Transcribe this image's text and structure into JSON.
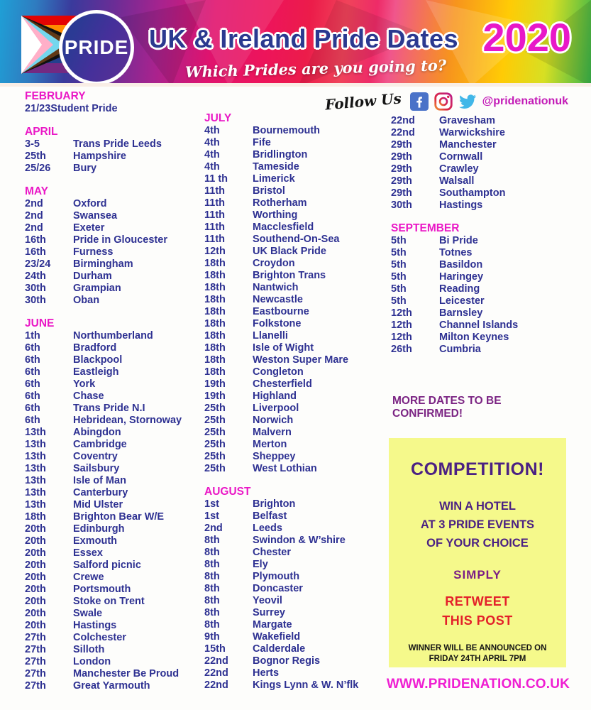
{
  "header": {
    "logo_text": "PRIDE",
    "title": "UK & Ireland Pride Dates",
    "year": "2020",
    "subtitle": "Which Prides are you going to?"
  },
  "social": {
    "follow_label": "Follow Us",
    "handle": "@pridenationuk",
    "icons": [
      "facebook-icon",
      "instagram-icon",
      "twitter-icon"
    ]
  },
  "columns": [
    {
      "sections": [
        {
          "month": "FEBRUARY",
          "tight": true,
          "entries": [
            {
              "d": "21/23",
              "n": "Student Pride"
            }
          ]
        },
        {
          "month": "APRIL",
          "entries": [
            {
              "d": "3-5",
              "n": "Trans Pride Leeds"
            },
            {
              "d": "25th",
              "n": "Hampshire"
            },
            {
              "d": "25/26",
              "n": "Bury"
            }
          ]
        },
        {
          "month": "MAY",
          "entries": [
            {
              "d": "2nd",
              "n": "Oxford"
            },
            {
              "d": "2nd",
              "n": "Swansea"
            },
            {
              "d": "2nd",
              "n": "Exeter"
            },
            {
              "d": "16th",
              "n": "Pride in Gloucester"
            },
            {
              "d": "16th",
              "n": "Furness"
            },
            {
              "d": "23/24",
              "n": "Birmingham"
            },
            {
              "d": "24th",
              "n": "Durham"
            },
            {
              "d": "30th",
              "n": "Grampian"
            },
            {
              "d": "30th",
              "n": "Oban"
            }
          ]
        },
        {
          "month": "JUNE",
          "entries": [
            {
              "d": "1th",
              "n": "Northumberland"
            },
            {
              "d": "6th",
              "n": "Bradford"
            },
            {
              "d": "6th",
              "n": "Blackpool"
            },
            {
              "d": "6th",
              "n": "Eastleigh"
            },
            {
              "d": "6th",
              "n": "York"
            },
            {
              "d": "6th",
              "n": "Chase"
            },
            {
              "d": "6th",
              "n": "Trans Pride N.I"
            },
            {
              "d": "6th",
              "n": "Hebridean, Stornoway"
            },
            {
              "d": "13th",
              "n": "Abingdon"
            },
            {
              "d": "13th",
              "n": "Cambridge"
            },
            {
              "d": "13th",
              "n": "Coventry"
            },
            {
              "d": "13th",
              "n": "Sailsbury"
            },
            {
              "d": "13th",
              "n": "Isle of Man"
            },
            {
              "d": "13th",
              "n": "Canterbury"
            },
            {
              "d": "13th",
              "n": "Mid Ulster"
            },
            {
              "d": "18th",
              "n": "Brighton Bear W/E"
            },
            {
              "d": "20th",
              "n": "Edinburgh"
            },
            {
              "d": "20th",
              "n": "Exmouth"
            },
            {
              "d": "20th",
              "n": "Essex"
            },
            {
              "d": "20th",
              "n": "Salford picnic"
            },
            {
              "d": "20th",
              "n": "Crewe"
            },
            {
              "d": "20th",
              "n": "Portsmouth"
            },
            {
              "d": "20th",
              "n": "Stoke on Trent"
            },
            {
              "d": "20th",
              "n": "Swale"
            },
            {
              "d": "20th",
              "n": "Hastings"
            },
            {
              "d": "27th",
              "n": "Colchester"
            },
            {
              "d": "27th",
              "n": "Silloth"
            },
            {
              "d": "27th",
              "n": "London"
            },
            {
              "d": "27th",
              "n": "Manchester Be Proud"
            },
            {
              "d": "27th",
              "n": "Great Yarmouth"
            }
          ]
        }
      ]
    },
    {
      "sections": [
        {
          "month": "JULY",
          "entries": [
            {
              "d": "4th",
              "n": "Bournemouth"
            },
            {
              "d": "4th",
              "n": "Fife"
            },
            {
              "d": "4th",
              "n": "Bridlington"
            },
            {
              "d": "4th",
              "n": "Tameside"
            },
            {
              "d": "11 th",
              "n": "Limerick"
            },
            {
              "d": "11th",
              "n": "Bristol"
            },
            {
              "d": "11th",
              "n": "Rotherham"
            },
            {
              "d": "11th",
              "n": "Worthing"
            },
            {
              "d": "11th",
              "n": "Macclesfield"
            },
            {
              "d": "11th",
              "n": "Southend-On-Sea"
            },
            {
              "d": "12th",
              "n": "UK Black Pride"
            },
            {
              "d": "18th",
              "n": "Croydon"
            },
            {
              "d": "18th",
              "n": "Brighton Trans"
            },
            {
              "d": "18th",
              "n": "Nantwich"
            },
            {
              "d": "18th",
              "n": "Newcastle"
            },
            {
              "d": "18th",
              "n": "Eastbourne"
            },
            {
              "d": "18th",
              "n": "Folkstone"
            },
            {
              "d": "18th",
              "n": "Llanelli"
            },
            {
              "d": "18th",
              "n": "Isle of Wight"
            },
            {
              "d": "18th",
              "n": "Weston Super Mare"
            },
            {
              "d": "18th",
              "n": "Congleton"
            },
            {
              "d": "19th",
              "n": "Chesterfield"
            },
            {
              "d": "19th",
              "n": "Highland"
            },
            {
              "d": "25th",
              "n": "Liverpool"
            },
            {
              "d": "25th",
              "n": "Norwich"
            },
            {
              "d": "25th",
              "n": "Malvern"
            },
            {
              "d": "25th",
              "n": "Merton"
            },
            {
              "d": "25th",
              "n": "Sheppey"
            },
            {
              "d": "25th",
              "n": "West Lothian"
            }
          ]
        },
        {
          "month": "AUGUST",
          "entries": [
            {
              "d": "1st",
              "n": "Brighton"
            },
            {
              "d": "1st",
              "n": "Belfast"
            },
            {
              "d": "2nd",
              "n": "Leeds"
            },
            {
              "d": "8th",
              "n": "Swindon & W’shire"
            },
            {
              "d": "8th",
              "n": "Chester"
            },
            {
              "d": "8th",
              "n": "Ely"
            },
            {
              "d": "8th",
              "n": "Plymouth"
            },
            {
              "d": "8th",
              "n": "Doncaster"
            },
            {
              "d": "8th",
              "n": "Yeovil"
            },
            {
              "d": "8th",
              "n": "Surrey"
            },
            {
              "d": "8th",
              "n": "Margate"
            },
            {
              "d": "9th",
              "n": "Wakefield"
            },
            {
              "d": "15th",
              "n": "Calderdale"
            },
            {
              "d": "22nd",
              "n": "Bognor Regis"
            },
            {
              "d": "22nd",
              "n": "Herts"
            },
            {
              "d": "22nd",
              "n": "Kings Lynn & W. N’flk"
            }
          ]
        }
      ]
    },
    {
      "sections": [
        {
          "month": "",
          "entries": [
            {
              "d": "22nd",
              "n": "Gravesham"
            },
            {
              "d": "22nd",
              "n": "Warwickshire"
            },
            {
              "d": "29th",
              "n": "Manchester"
            },
            {
              "d": "29th",
              "n": "Cornwall"
            },
            {
              "d": "29th",
              "n": "Crawley"
            },
            {
              "d": "29th",
              "n": "Walsall"
            },
            {
              "d": "29th",
              "n": "Southampton"
            },
            {
              "d": "30th",
              "n": "Hastings"
            }
          ]
        },
        {
          "month": "SEPTEMBER",
          "entries": [
            {
              "d": "5th",
              "n": "Bi Pride"
            },
            {
              "d": "5th",
              "n": "Totnes"
            },
            {
              "d": "5th",
              "n": "Basildon"
            },
            {
              "d": "5th",
              "n": "Haringey"
            },
            {
              "d": "5th",
              "n": "Reading"
            },
            {
              "d": "5th",
              "n": "Leicester"
            },
            {
              "d": "12th",
              "n": "Barnsley"
            },
            {
              "d": "12th",
              "n": "Channel Islands"
            },
            {
              "d": "12th",
              "n": "Milton Keynes"
            },
            {
              "d": "26th",
              "n": "Cumbria"
            }
          ]
        }
      ]
    }
  ],
  "notes": {
    "more_dates_line1": "MORE DATES TO BE",
    "more_dates_line2": "CONFIRMED!"
  },
  "competition": {
    "title": "COMPETITION!",
    "prize_line1": "WIN A HOTEL",
    "prize_line2": "AT 3 PRIDE EVENTS",
    "prize_line3": "OF YOUR CHOICE",
    "simply": "SIMPLY",
    "action_line1": "RETWEET",
    "action_line2": "THIS POST",
    "winner_line1": "WINNER WILL BE ANNOUNCED ON",
    "winner_line2": "FRIDAY 24TH APRIL 7PM"
  },
  "website": "WWW.PRIDENATION.CO.UK",
  "colors": {
    "navy_text": "#2e3192",
    "month_magenta": "#ea18c6",
    "title_blue": "#2b3990",
    "year_magenta": "#e818c8",
    "notes_purple": "#7b2483",
    "competition_purple": "#4b2183",
    "simply_purple": "#7a1c86",
    "action_red": "#e3202a",
    "competition_box_yellow": "#f5f98b",
    "website_magenta": "#ef1ed2"
  }
}
